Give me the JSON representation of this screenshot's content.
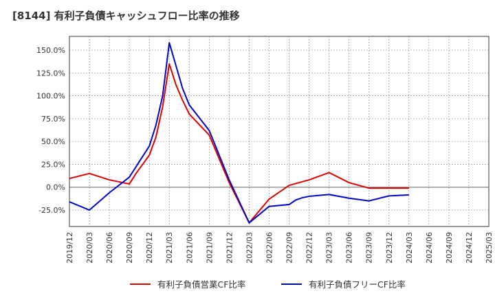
{
  "chart_data": {
    "type": "line",
    "title": "[8144]  有利子負債キャッシュフロー比率の推移",
    "xlabel": "",
    "ylabel": "",
    "ylim": [
      -43,
      165
    ],
    "xlim": [
      "2019/12",
      "2025/03"
    ],
    "grid": true,
    "legend_position": "bottom",
    "x_tick_labels": [
      "2019/12",
      "2020/03",
      "2020/06",
      "2020/09",
      "2020/12",
      "2021/03",
      "2021/06",
      "2021/09",
      "2021/12",
      "2022/03",
      "2022/06",
      "2022/09",
      "2022/12",
      "2023/03",
      "2023/06",
      "2023/09",
      "2023/12",
      "2024/03",
      "2024/06",
      "2024/09",
      "2024/12",
      "2025/03"
    ],
    "y_ticks": [
      -25,
      0,
      25,
      50,
      75,
      100,
      125,
      150
    ],
    "y_tick_labels": [
      "-25.0%",
      "0.0%",
      "25.0%",
      "50.0%",
      "75.0%",
      "100.0%",
      "125.0%",
      "150.0%"
    ],
    "series": [
      {
        "name": "有利子負債営業CF比率",
        "color": "#dd0000",
        "points": [
          [
            "2019/12",
            9.5
          ],
          [
            "2020/03",
            15
          ],
          [
            "2020/06",
            8
          ],
          [
            "2020/09",
            3.5
          ],
          [
            "2020/10",
            15
          ],
          [
            "2020/11",
            25
          ],
          [
            "2020/12",
            35
          ],
          [
            "2021/01",
            55
          ],
          [
            "2021/02",
            88
          ],
          [
            "2021/03",
            135
          ],
          [
            "2021/04",
            112
          ],
          [
            "2021/05",
            95
          ],
          [
            "2021/06",
            80
          ],
          [
            "2021/09",
            57
          ],
          [
            "2021/12",
            5
          ],
          [
            "2022/03",
            -39
          ],
          [
            "2022/06",
            -13
          ],
          [
            "2022/09",
            2
          ],
          [
            "2022/12",
            8
          ],
          [
            "2023/03",
            16
          ],
          [
            "2023/06",
            5
          ],
          [
            "2023/09",
            -1
          ],
          [
            "2023/12",
            -1
          ],
          [
            "2024/03",
            -1
          ]
        ]
      },
      {
        "name": "有利子負債フリーCF比率",
        "color": "#0000cc",
        "points": [
          [
            "2019/12",
            -16
          ],
          [
            "2020/03",
            -25
          ],
          [
            "2020/06",
            -6
          ],
          [
            "2020/09",
            11
          ],
          [
            "2020/12",
            45
          ],
          [
            "2021/01",
            68
          ],
          [
            "2021/02",
            100
          ],
          [
            "2021/03",
            158
          ],
          [
            "2021/04",
            133
          ],
          [
            "2021/05",
            108
          ],
          [
            "2021/06",
            90
          ],
          [
            "2021/09",
            62
          ],
          [
            "2021/12",
            8
          ],
          [
            "2022/03",
            -39
          ],
          [
            "2022/06",
            -21
          ],
          [
            "2022/09",
            -19
          ],
          [
            "2022/10",
            -14
          ],
          [
            "2022/11",
            -11.5
          ],
          [
            "2022/12",
            -10
          ],
          [
            "2023/03",
            -8
          ],
          [
            "2023/06",
            -12
          ],
          [
            "2023/09",
            -15
          ],
          [
            "2023/12",
            -9.5
          ],
          [
            "2024/03",
            -8.5
          ]
        ]
      }
    ]
  }
}
